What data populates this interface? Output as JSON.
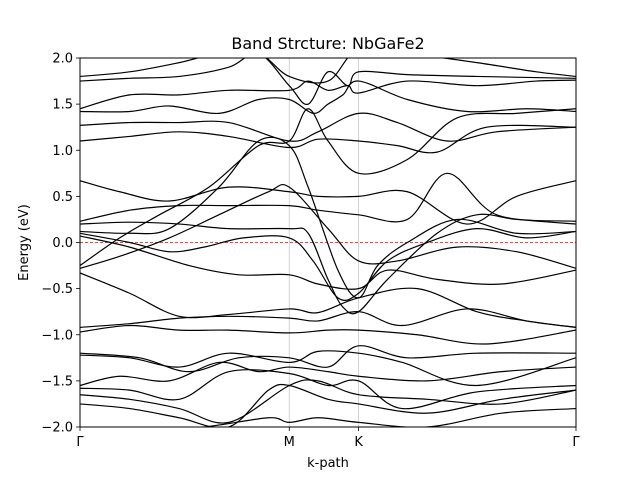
{
  "chart_data": {
    "type": "line",
    "title": "Band Strcture: NbGaFe2",
    "xlabel": "k-path",
    "ylabel": "Energy (eV)",
    "ylim": [
      -2.0,
      2.0
    ],
    "yticks": [
      -2.0,
      -1.5,
      -1.0,
      -0.5,
      0.0,
      0.5,
      1.0,
      1.5,
      2.0
    ],
    "ytick_labels": [
      "−2.0",
      "−1.5",
      "−1.0",
      "−0.5",
      "0.0",
      "0.5",
      "1.0",
      "1.5",
      "2.0"
    ],
    "xlim": [
      0,
      1
    ],
    "high_symmetry_points": [
      {
        "label": "Γ",
        "x": 0.0
      },
      {
        "label": "M",
        "x": 0.4219
      },
      {
        "label": "K",
        "x": 0.5617
      },
      {
        "label": "Γ",
        "x": 1.0
      }
    ],
    "fermi_level": 0.0,
    "colors": {
      "bands": "#000000",
      "fermi": "#ff0000",
      "vlines": "#c8c8c8"
    },
    "grid": "vertical lines at high-symmetry points",
    "series": [
      {
        "x": [
          0,
          0.1,
          0.25,
          0.38,
          0.4219,
          0.48,
          0.5617,
          0.7,
          0.85,
          1.0
        ],
        "y": [
          -2.0,
          -2.05,
          -2.0,
          -1.9,
          -1.95,
          -1.9,
          -1.95,
          -2.0,
          -1.85,
          -1.8
        ]
      },
      {
        "x": [
          0,
          0.1,
          0.2,
          0.3,
          0.38,
          0.4219,
          0.5,
          0.5617,
          0.7,
          0.85,
          1.0
        ],
        "y": [
          -1.75,
          -1.8,
          -1.9,
          -2.0,
          -1.6,
          -1.55,
          -1.7,
          -1.75,
          -1.85,
          -1.7,
          -1.6
        ]
      },
      {
        "x": [
          0,
          0.1,
          0.2,
          0.3,
          0.4219,
          0.48,
          0.5617,
          0.7,
          0.85,
          1.0
        ],
        "y": [
          -1.65,
          -1.7,
          -1.8,
          -1.95,
          -1.55,
          -1.5,
          -1.65,
          -1.7,
          -1.75,
          -1.6
        ]
      },
      {
        "x": [
          0,
          0.1,
          0.2,
          0.3,
          0.4219,
          0.5,
          0.5617,
          0.65,
          0.8,
          1.0
        ],
        "y": [
          -1.58,
          -1.6,
          -1.7,
          -1.4,
          -1.42,
          -1.55,
          -1.5,
          -1.8,
          -1.62,
          -1.55
        ]
      },
      {
        "x": [
          0,
          0.08,
          0.18,
          0.28,
          0.36,
          0.4219,
          0.5,
          0.5617,
          0.7,
          0.85,
          1.0
        ],
        "y": [
          -1.55,
          -1.45,
          -1.5,
          -1.3,
          -1.4,
          -1.35,
          -1.4,
          -1.45,
          -1.5,
          -1.4,
          -1.35
        ]
      },
      {
        "x": [
          0,
          0.1,
          0.2,
          0.3,
          0.4219,
          0.48,
          0.5617,
          0.65,
          0.8,
          1.0
        ],
        "y": [
          -1.22,
          -1.25,
          -1.35,
          -1.2,
          -1.3,
          -1.18,
          -1.2,
          -1.3,
          -1.55,
          -1.25
        ]
      },
      {
        "x": [
          0,
          0.12,
          0.22,
          0.32,
          0.4219,
          0.5,
          0.5617,
          0.66,
          0.8,
          1.0
        ],
        "y": [
          -1.2,
          -1.25,
          -1.4,
          -1.25,
          -1.25,
          -1.35,
          -1.12,
          -1.25,
          -1.2,
          -1.2
        ]
      },
      {
        "x": [
          0,
          0.1,
          0.2,
          0.3,
          0.4219,
          0.5,
          0.5617,
          0.68,
          0.82,
          1.0
        ],
        "y": [
          -0.97,
          -0.9,
          -0.95,
          -0.95,
          -0.98,
          -0.95,
          -0.95,
          -1.0,
          -1.1,
          -0.95
        ]
      },
      {
        "x": [
          0,
          0.1,
          0.2,
          0.3,
          0.4219,
          0.48,
          0.5617,
          0.65,
          0.78,
          0.9,
          1.0
        ],
        "y": [
          -0.92,
          -0.88,
          -0.82,
          -0.8,
          -0.82,
          -0.85,
          -0.75,
          -0.9,
          -0.72,
          -0.85,
          -0.92
        ]
      },
      {
        "x": [
          0,
          0.1,
          0.2,
          0.3,
          0.4219,
          0.48,
          0.5617,
          0.68,
          0.8,
          0.9,
          1.0
        ],
        "y": [
          -0.33,
          -0.55,
          -0.8,
          -0.78,
          -0.72,
          -0.76,
          -0.6,
          -0.5,
          -0.75,
          -0.85,
          -0.92
        ]
      },
      {
        "x": [
          0,
          0.1,
          0.22,
          0.32,
          0.4219,
          0.48,
          0.5617,
          0.62,
          0.72,
          0.85,
          1.0
        ],
        "y": [
          0.07,
          -0.05,
          -0.25,
          -0.35,
          -0.35,
          -0.45,
          -0.5,
          -0.3,
          -0.4,
          -0.45,
          -0.3
        ]
      },
      {
        "x": [
          0,
          0.08,
          0.18,
          0.28,
          0.38,
          0.4219,
          0.5,
          0.5617,
          0.64,
          0.76,
          0.88,
          1.0
        ],
        "y": [
          -0.28,
          -0.15,
          0.05,
          0.3,
          0.55,
          0.6,
          0.15,
          -0.2,
          -0.2,
          -0.05,
          -0.1,
          -0.28
        ]
      },
      {
        "x": [
          0,
          0.1,
          0.18,
          0.25,
          0.33,
          0.4219,
          0.47,
          0.52,
          0.5617,
          0.62,
          0.7,
          0.8,
          0.9,
          1.0
        ],
        "y": [
          0.1,
          0.0,
          -0.1,
          -0.05,
          0.05,
          0.05,
          -0.2,
          -0.6,
          -0.55,
          -0.2,
          0.0,
          0.15,
          0.05,
          0.12
        ]
      },
      {
        "x": [
          0,
          0.1,
          0.18,
          0.28,
          0.36,
          0.4219,
          0.46,
          0.52,
          0.5617,
          0.6,
          0.66,
          0.76,
          0.88,
          1.0
        ],
        "y": [
          0.12,
          0.1,
          0.15,
          0.6,
          1.1,
          1.05,
          0.6,
          -0.3,
          -0.6,
          -0.25,
          0.0,
          0.25,
          0.1,
          0.12
        ]
      },
      {
        "x": [
          0,
          0.1,
          0.2,
          0.3,
          0.4219,
          0.46,
          0.5,
          0.53,
          0.5617,
          0.62,
          0.72,
          0.8,
          0.88,
          1.0
        ],
        "y": [
          0.2,
          0.22,
          0.2,
          0.15,
          0.15,
          0.1,
          -0.4,
          -0.7,
          -0.75,
          -0.4,
          0.1,
          0.3,
          0.25,
          0.2
        ]
      },
      {
        "x": [
          0,
          0.1,
          0.2,
          0.3,
          0.4219,
          0.48,
          0.5617,
          0.66,
          0.74,
          0.84,
          1.0
        ],
        "y": [
          0.23,
          0.35,
          0.4,
          0.4,
          0.4,
          0.35,
          0.3,
          0.25,
          0.75,
          0.3,
          0.23
        ]
      },
      {
        "x": [
          0,
          0.08,
          0.18,
          0.3,
          0.4219,
          0.48,
          0.5617,
          0.66,
          0.78,
          0.88,
          1.0
        ],
        "y": [
          0.67,
          0.55,
          0.45,
          0.6,
          0.55,
          0.5,
          0.5,
          0.55,
          0.2,
          0.5,
          0.67
        ]
      },
      {
        "x": [
          0,
          0.08,
          0.16,
          0.26,
          0.36,
          0.4219,
          0.46,
          0.5,
          0.5617,
          0.66,
          0.76,
          0.88,
          1.0
        ],
        "y": [
          -0.25,
          0.05,
          0.3,
          0.6,
          1.05,
          1.1,
          1.45,
          1.1,
          0.75,
          0.9,
          1.35,
          1.4,
          1.45
        ]
      },
      {
        "x": [
          0,
          0.1,
          0.2,
          0.3,
          0.4219,
          0.48,
          0.5617,
          0.64,
          0.72,
          0.82,
          1.0
        ],
        "y": [
          1.1,
          1.15,
          1.2,
          1.15,
          1.03,
          1.12,
          1.1,
          1.05,
          0.98,
          1.25,
          1.25
        ]
      },
      {
        "x": [
          0,
          0.1,
          0.2,
          0.3,
          0.4219,
          0.48,
          0.5617,
          0.64,
          0.74,
          0.84,
          1.0
        ],
        "y": [
          1.27,
          1.3,
          1.3,
          1.3,
          1.1,
          1.2,
          1.4,
          1.3,
          1.1,
          1.2,
          1.25
        ]
      },
      {
        "x": [
          0,
          0.1,
          0.18,
          0.28,
          0.36,
          0.4219,
          0.47,
          0.5,
          0.53,
          0.5617,
          0.66,
          0.78,
          0.9,
          1.0
        ],
        "y": [
          1.42,
          1.42,
          1.48,
          1.4,
          1.55,
          1.55,
          1.4,
          1.5,
          1.6,
          1.75,
          1.55,
          1.42,
          1.45,
          1.42
        ]
      },
      {
        "x": [
          0,
          0.1,
          0.2,
          0.3,
          0.4219,
          0.46,
          0.5,
          0.54,
          0.5617,
          0.66,
          0.8,
          0.92,
          1.0
        ],
        "y": [
          1.45,
          1.6,
          1.6,
          1.65,
          1.65,
          1.75,
          1.65,
          1.7,
          1.62,
          1.75,
          1.7,
          1.75,
          1.76
        ]
      },
      {
        "x": [
          0,
          0.1,
          0.2,
          0.3,
          0.36,
          0.4219,
          0.46,
          0.5,
          0.54,
          0.5617,
          0.66,
          0.8,
          1.0
        ],
        "y": [
          1.75,
          1.78,
          1.8,
          1.9,
          2.05,
          1.7,
          1.5,
          1.85,
          1.7,
          1.85,
          1.82,
          1.8,
          1.78
        ]
      },
      {
        "x": [
          0,
          0.1,
          0.2,
          0.28,
          0.36,
          0.4219,
          0.5,
          0.5617,
          0.66,
          0.8,
          0.92,
          1.0
        ],
        "y": [
          1.8,
          1.85,
          1.95,
          2.05,
          2.05,
          1.8,
          1.75,
          2.1,
          2.05,
          1.95,
          1.85,
          1.8
        ]
      }
    ]
  }
}
